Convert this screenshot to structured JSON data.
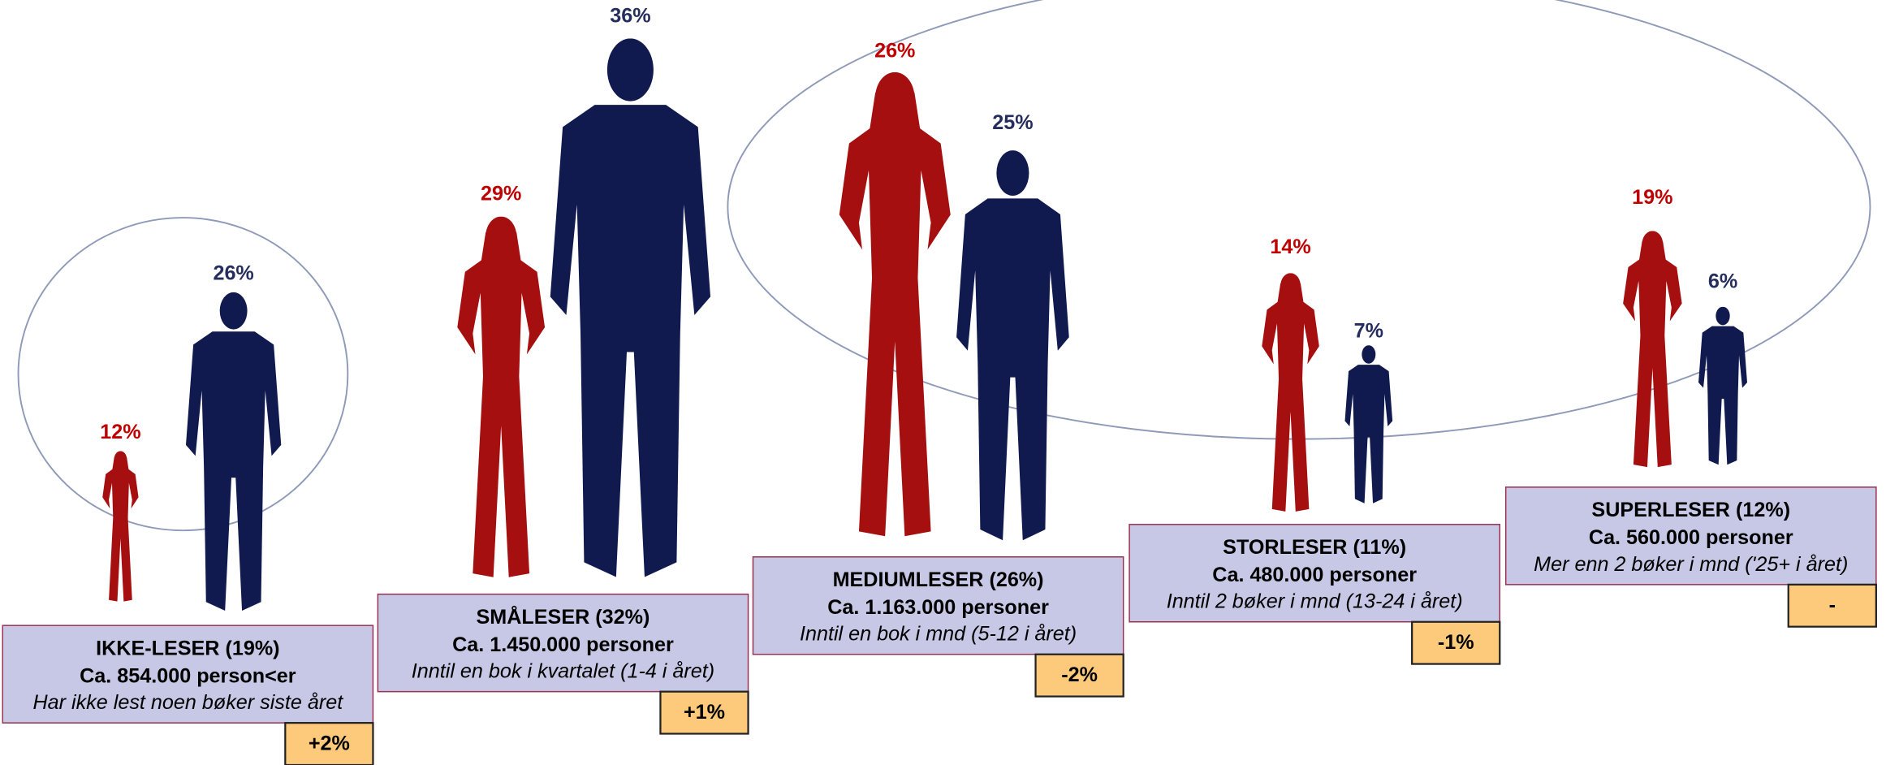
{
  "groups": [
    {
      "name": "IKKE-LESER (19%)",
      "count": "Ca. 854.000 person<er",
      "description": "Har ikke lest noen bøker siste året",
      "change": "+2%",
      "women": "12%",
      "men": "26%"
    },
    {
      "name": "SMÅLESER (32%)",
      "count": "Ca. 1.450.000 personer",
      "description": "Inntil en bok i kvartalet (1-4 i året)",
      "change": "+1%",
      "women": "29%",
      "men": "36%"
    },
    {
      "name": "MEDIUMLESER (26%)",
      "count": "Ca. 1.163.000 personer",
      "description": "Inntil en bok i mnd (5-12 i året)",
      "change": "-2%",
      "women": "26%",
      "men": "25%"
    },
    {
      "name": "STORLESER (11%)",
      "count": "Ca. 480.000 personer",
      "description": "Inntil 2 bøker i mnd (13-24 i året)",
      "change": "-1%",
      "women": "14%",
      "men": "7%"
    },
    {
      "name": "SUPERLESER (12%)",
      "count": "Ca. 560.000 personer",
      "description": "Mer enn 2 bøker i mnd ('25+ i året)",
      "change": "-",
      "women": "19%",
      "men": "6%"
    }
  ]
}
